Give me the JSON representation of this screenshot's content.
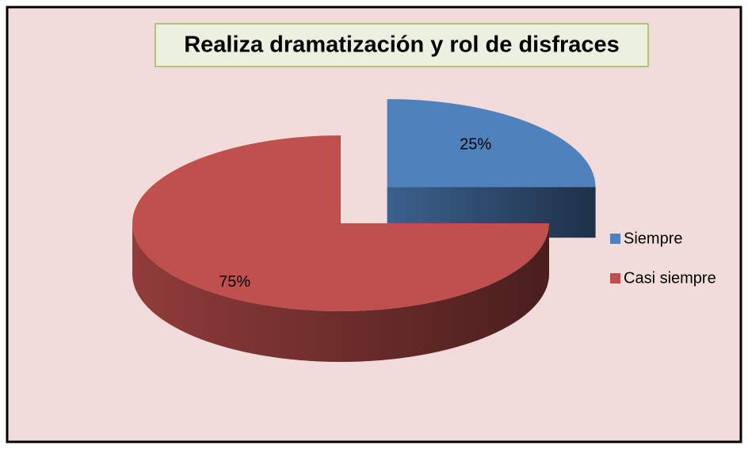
{
  "chart_data": {
    "type": "pie",
    "title": "Realiza dramatización y rol de disfraces",
    "categories": [
      "Siempre",
      "Casi siempre"
    ],
    "values": [
      25,
      75
    ],
    "value_labels": [
      "25%",
      "75%"
    ],
    "colors": [
      "#4f81bd",
      "#c0504d"
    ],
    "legend": "right"
  }
}
